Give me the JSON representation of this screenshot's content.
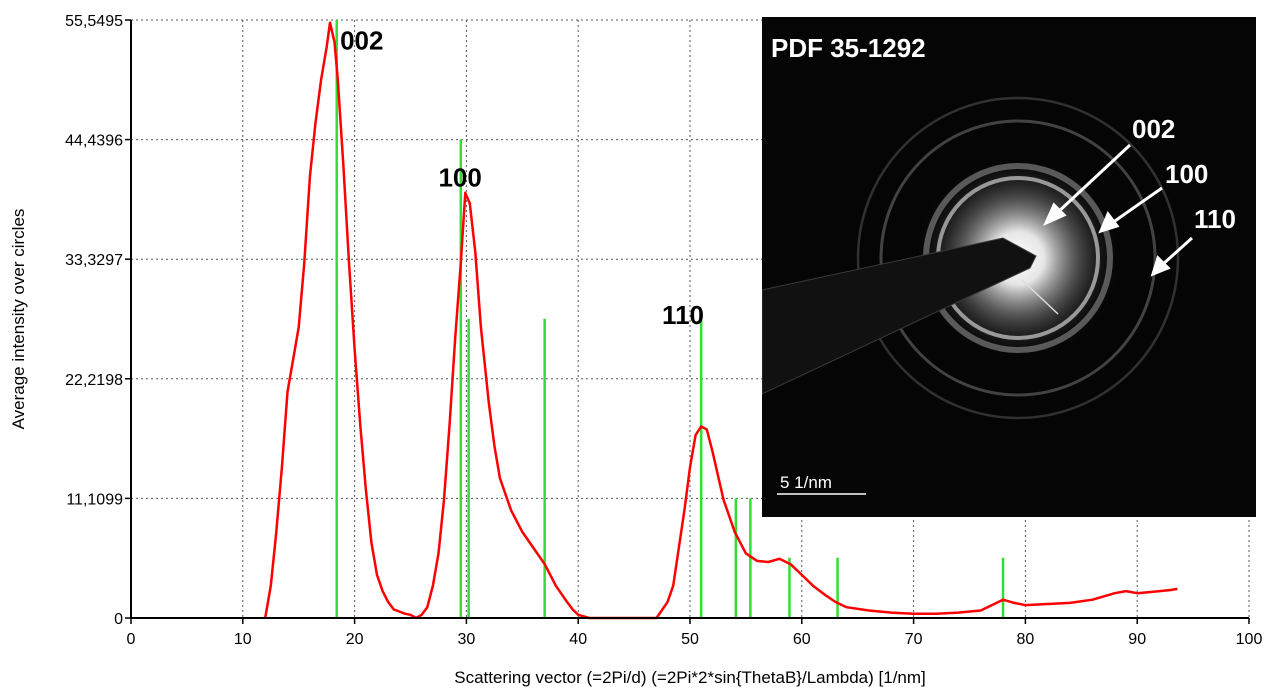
{
  "chart_data": {
    "type": "line",
    "title": "",
    "xlabel": "Scattering vector (=2Pi/d) (=2Pi*2*sin{ThetaB}/Lambda) [1/nm]",
    "ylabel": "Average intensity over circles",
    "xlim": [
      0,
      100
    ],
    "ylim": [
      0,
      55.5495
    ],
    "x_ticks": [
      0,
      10,
      20,
      30,
      40,
      50,
      60,
      70,
      80,
      90,
      100
    ],
    "x_tick_labels": [
      "0",
      "10",
      "20",
      "30",
      "40",
      "50",
      "60",
      "70",
      "80",
      "90",
      "100"
    ],
    "y_ticks": [
      0,
      11.1099,
      22.2198,
      33.3297,
      44.4396,
      55.5495
    ],
    "y_tick_labels": [
      "0",
      "11,1099",
      "22,2198",
      "33,3297",
      "44,4396",
      "55,5495"
    ],
    "grid": true,
    "series": [
      {
        "color": "#ff0000",
        "x": [
          12,
          12.5,
          13,
          13.5,
          14,
          14.5,
          15,
          15.5,
          16,
          16.5,
          17,
          17.5,
          17.8,
          18.2,
          18.5,
          19,
          19.5,
          20,
          20.5,
          21,
          21.5,
          22,
          22.5,
          23,
          23.5,
          24,
          24.5,
          25,
          25.5,
          26,
          26.5,
          27,
          27.5,
          28,
          28.5,
          29,
          29.5,
          29.9,
          30.3,
          30.8,
          31.3,
          32,
          32.5,
          33,
          34,
          35,
          36,
          37,
          38,
          39,
          39.5,
          40,
          41,
          43,
          45,
          47,
          48,
          48.5,
          49,
          49.5,
          50,
          50.5,
          51,
          51.5,
          52,
          53,
          54,
          55,
          56,
          57,
          58,
          59,
          60,
          61,
          62,
          63,
          64,
          66,
          68,
          70,
          72,
          74,
          76,
          77,
          78,
          79,
          80,
          82,
          84,
          86,
          88,
          89,
          90,
          91,
          92,
          93,
          93.6
        ],
        "y": [
          0,
          3,
          8,
          14,
          21,
          24,
          27,
          33,
          41,
          46,
          50,
          53,
          55.3,
          53.5,
          50,
          42,
          33,
          25,
          18,
          12,
          7,
          4,
          2.5,
          1.5,
          0.8,
          0.6,
          0.4,
          0.3,
          0,
          0.3,
          1,
          3,
          6,
          11,
          18,
          26,
          33,
          39.5,
          38.5,
          34,
          27,
          20,
          16,
          13,
          10,
          8,
          6.5,
          5,
          3,
          1.5,
          0.8,
          0.3,
          0,
          0,
          0,
          0,
          1.5,
          3,
          6.5,
          10,
          14,
          17,
          17.8,
          17.5,
          15.5,
          11,
          8,
          6,
          5.3,
          5.2,
          5.5,
          5,
          4,
          3,
          2.2,
          1.5,
          1,
          0.7,
          0.5,
          0.4,
          0.4,
          0.5,
          0.7,
          1.2,
          1.7,
          1.4,
          1.2,
          1.3,
          1.4,
          1.7,
          2.3,
          2.5,
          2.3,
          2.4,
          2.5,
          2.6,
          2.7
        ]
      }
    ],
    "reference_lines": {
      "color": "#33dd33",
      "x": [
        18.4,
        29.5,
        30.2,
        37,
        51,
        54.1,
        55.4,
        58.9,
        63.2,
        78
      ],
      "y": [
        55.5495,
        44.4396,
        27.8,
        27.8,
        27.8,
        11.1099,
        11.1099,
        5.6,
        5.6,
        5.6
      ]
    },
    "peak_labels": [
      {
        "text": "002",
        "x": 18.7,
        "y": 52.8
      },
      {
        "text": "100",
        "x": 27.5,
        "y": 40.1
      },
      {
        "text": "110",
        "x": 47.5,
        "y": 27.3
      }
    ],
    "inset": {
      "title": "PDF 35-1292",
      "ring_labels": [
        "002",
        "100",
        "110"
      ],
      "scale_bar_label": "5 1/nm"
    }
  }
}
